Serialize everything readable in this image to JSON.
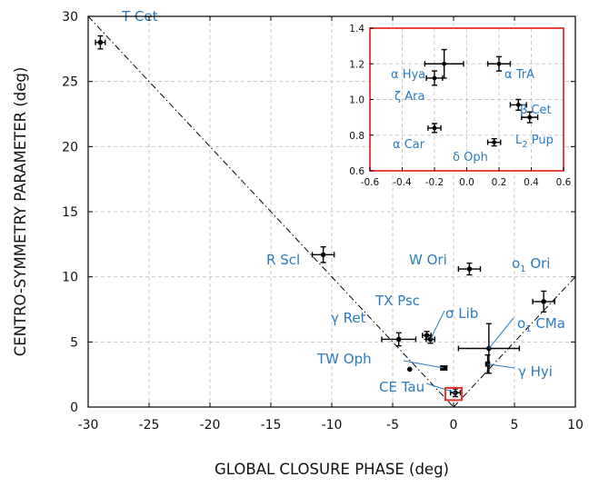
{
  "chart_data": [
    {
      "type": "scatter",
      "xlabel": "GLOBAL CLOSURE PHASE (deg)",
      "ylabel": "CENTRO-SYMMETRY PARAMETER (deg)",
      "xlim": [
        -30,
        10
      ],
      "ylim": [
        0,
        30
      ],
      "xticks": [
        "-30",
        "-25",
        "-20",
        "-15",
        "-10",
        "-5",
        "0",
        "5",
        "10"
      ],
      "yticks": [
        "0",
        "5",
        "10",
        "15",
        "20",
        "25",
        "30"
      ],
      "grid": true,
      "colors": {
        "points": "#000000",
        "labels": "#2a7bc0",
        "inset_frame": "#e8322d",
        "reference_line": "#000000"
      },
      "reference_lines": [
        {
          "style": "dash-dot",
          "from": [
            -30,
            30
          ],
          "to": [
            0,
            0
          ]
        },
        {
          "style": "dash-dot",
          "from": [
            0,
            0
          ],
          "to": [
            10,
            10
          ]
        }
      ],
      "points": [
        {
          "label": "T Cet",
          "x": -29,
          "y": 28,
          "xerr": 0.4,
          "yerr": 0.5
        },
        {
          "label": "R Scl",
          "x": -10.7,
          "y": 11.7,
          "xerr": 0.9,
          "yerr": 0.6
        },
        {
          "label": "W Ori",
          "x": 1.3,
          "y": 10.6,
          "xerr": 0.9,
          "yerr": 0.45
        },
        {
          "label": "o1 Ori",
          "x": 7.4,
          "y": 8.1,
          "xerr": 0.9,
          "yerr": 0.8
        },
        {
          "label": "γ Ret",
          "x": -4.5,
          "y": 5.2,
          "xerr": 1.4,
          "yerr": 0.5
        },
        {
          "label": "TX Psc",
          "x": -2.2,
          "y": 5.5,
          "xerr": 0.35,
          "yerr": 0.3
        },
        {
          "label": "σ Lib",
          "x": -1.9,
          "y": 5.2,
          "xerr": 0.35,
          "yerr": 0.3
        },
        {
          "label": "o1 CMa",
          "x": 2.9,
          "y": 4.5,
          "xerr": 2.5,
          "yerr": 1.9
        },
        {
          "label": "γ Hyi",
          "x": 2.8,
          "y": 3.3,
          "xerr": 0.15,
          "yerr": 0.7
        },
        {
          "label": "TW Oph",
          "x": -0.8,
          "y": 3.0,
          "xerr": 0.25,
          "yerr": 0.15
        },
        {
          "label": "",
          "x": -3.6,
          "y": 2.9,
          "xerr": 0,
          "yerr": 0
        },
        {
          "label": "CE Tau",
          "x": 0.15,
          "y": 1.1,
          "xerr": 0.4,
          "yerr": 0.3
        }
      ],
      "label_text": {
        "T Cet": "T Cet",
        "R Scl": "R Scl",
        "W Ori": "W Ori",
        "o1 Ori": {
          "main": "o",
          "sub": "1",
          "after": " Ori"
        },
        "γ Ret": "γ Ret",
        "TX Psc": "TX Psc",
        "σ Lib": "σ Lib",
        "o1 CMa": {
          "main": "o",
          "sub": "1",
          "after": " CMa"
        },
        "γ Hyi": "γ Hyi",
        "TW Oph": "TW Oph",
        "CE Tau": "CE Tau"
      }
    },
    {
      "type": "scatter",
      "role": "inset",
      "xlim": [
        -0.6,
        0.6
      ],
      "ylim": [
        0.6,
        1.4
      ],
      "xticks": [
        "-0.6",
        "-0.4",
        "-0.2",
        "0.0",
        "0.2",
        "0.4",
        "0.6"
      ],
      "yticks": [
        "0.6",
        "0.8",
        "1.0",
        "1.2",
        "1.4"
      ],
      "grid": true,
      "points": [
        {
          "label": "α Hya",
          "x": -0.14,
          "y": 1.2,
          "xerr": 0.12,
          "yerr": 0.08
        },
        {
          "label": "α TrA",
          "x": 0.2,
          "y": 1.2,
          "xerr": 0.07,
          "yerr": 0.04
        },
        {
          "label": "ζ Ara",
          "x": -0.2,
          "y": 1.12,
          "xerr": 0.05,
          "yerr": 0.04
        },
        {
          "label": "β Cet",
          "x": 0.32,
          "y": 0.97,
          "xerr": 0.05,
          "yerr": 0.03
        },
        {
          "label": "L2 Pup",
          "x": 0.39,
          "y": 0.9,
          "xerr": 0.05,
          "yerr": 0.03
        },
        {
          "label": "α Car",
          "x": -0.2,
          "y": 0.84,
          "xerr": 0.04,
          "yerr": 0.025
        },
        {
          "label": "δ Oph",
          "x": 0.17,
          "y": 0.76,
          "xerr": 0.04,
          "yerr": 0.02
        }
      ],
      "label_text": {
        "α Hya": "α Hya",
        "α TrA": "α TrA",
        "ζ Ara": "ζ Ara",
        "β Cet": "β Cet",
        "L2 Pup": {
          "main": "L",
          "sub": "2",
          "after": " Pup"
        },
        "α Car": "α Car",
        "δ Oph": "δ Oph"
      }
    }
  ]
}
